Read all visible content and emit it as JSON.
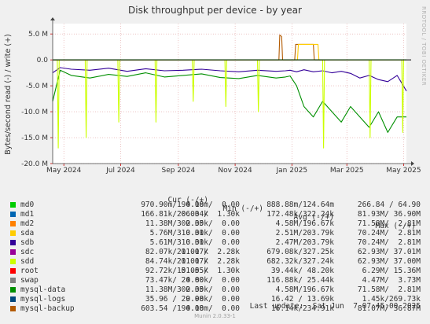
{
  "title": "Disk throughput per device - by year",
  "watermark": "RRDTOOL / TOBI OETIKER",
  "footer": "Munin 2.0.33-1",
  "last_update": "Last update:  Sat Jun  7 07:45:00 2025",
  "legend_headers": {
    "cur": "Cur (-/+)",
    "min": "Min (-/+)",
    "avg": "Avg (-/+)",
    "max": "Max (-/+)"
  },
  "legend": [
    {
      "name": "md0",
      "color": "#00cc00",
      "cur": "970.90m/194.18m",
      "min": "0.00 /  0.00",
      "avg": "888.88m/124.64m",
      "max": "266.84 / 64.90"
    },
    {
      "name": "md1",
      "color": "#0066b3",
      "cur": "166.81k/206.34k",
      "min": "0.00 /  1.30k",
      "avg": "172.48k/322.24k",
      "max": "81.93M/ 36.90M"
    },
    {
      "name": "md2",
      "color": "#ff8000",
      "cur": " 11.38M/302.35k",
      "min": "0.00 /  0.00",
      "avg": "  4.58M/196.67k",
      "max": "71.58M/  2.81M"
    },
    {
      "name": "sda",
      "color": "#ffcc00",
      "cur": "  5.76M/310.31k",
      "min": "0.00 /  0.00",
      "avg": "  2.51M/203.79k",
      "max": "70.24M/  2.81M"
    },
    {
      "name": "sdb",
      "color": "#330099",
      "cur": "  5.61M/310.31k",
      "min": "0.00 /  0.00",
      "avg": "  2.47M/203.79k",
      "max": "70.24M/  2.81M"
    },
    {
      "name": "sdc",
      "color": "#990099",
      "cur": " 82.07k/211.17k",
      "min": "0.00 /  2.28k",
      "avg": "679.08k/327.25k",
      "max": "62.93M/ 37.01M"
    },
    {
      "name": "sdd",
      "color": "#ccff00",
      "cur": " 84.74k/211.17k",
      "min": "0.00 /  2.28k",
      "avg": "682.32k/327.24k",
      "max": "62.93M/ 37.00M"
    },
    {
      "name": "root",
      "color": "#ff0000",
      "cur": " 92.72k/151.55k",
      "min": "0.00 /  1.30k",
      "avg": " 39.44k/ 48.20k",
      "max": " 6.29M/ 15.36M"
    },
    {
      "name": "swap",
      "color": "#808080",
      "cur": " 73.47k/ 24.80k",
      "min": "0.00 /  0.00",
      "avg": "116.88k/ 25.44k",
      "max": " 4.47M/  3.73M"
    },
    {
      "name": "mysql-data",
      "color": "#008f00",
      "cur": " 11.38M/302.35k",
      "min": "0.00 /  0.00",
      "avg": "  4.58M/196.67k",
      "max": "71.58M/  2.81M"
    },
    {
      "name": "mysql-logs",
      "color": "#00487d",
      "cur": " 35.96 / 29.98k",
      "min": "0.00 /  0.00",
      "avg": " 16.42 / 13.69k",
      "max": " 1.45k/269.73k"
    },
    {
      "name": "mysql-backup",
      "color": "#b35a00",
      "cur": "603.54 /194.18m",
      "min": "0.00 /  0.00",
      "avg": " 16.14k/234.91k",
      "max": "81.07M/ 36.87M"
    }
  ],
  "chart_data": {
    "type": "line",
    "title": "Disk throughput per device - by year",
    "ylabel": "Bytes/second read (-) / write (+)",
    "ylim": [
      -20000000,
      7000000
    ],
    "yticks": [
      {
        "value": 5000000,
        "label": "5.0 M"
      },
      {
        "value": 0,
        "label": "0.0"
      },
      {
        "value": -5000000,
        "label": "-5.0 M"
      },
      {
        "value": -10000000,
        "label": "-10.0 M"
      },
      {
        "value": -15000000,
        "label": "-15.0 M"
      },
      {
        "value": -20000000,
        "label": "-20.0 M"
      }
    ],
    "xlim": [
      0,
      380
    ],
    "xticks": [
      {
        "value": 12,
        "label": "May 2024"
      },
      {
        "value": 73,
        "label": "Jul 2024"
      },
      {
        "value": 135,
        "label": "Sep 2024"
      },
      {
        "value": 196,
        "label": "Nov 2024"
      },
      {
        "value": 257,
        "label": "Jan 2025"
      },
      {
        "value": 316,
        "label": "Mar 2025"
      },
      {
        "value": 377,
        "label": "May 2025"
      }
    ],
    "series": [
      {
        "name": "sdb",
        "color": "#330099",
        "x": [
          0,
          8,
          20,
          40,
          60,
          80,
          100,
          120,
          140,
          160,
          180,
          200,
          220,
          240,
          250,
          255,
          262,
          270,
          280,
          290,
          300,
          310,
          320,
          330,
          340,
          350,
          360,
          370,
          380
        ],
        "y": [
          -2500000,
          -1500000,
          -1800000,
          -2000000,
          -1600000,
          -2200000,
          -1700000,
          -2100000,
          -2000000,
          -1800000,
          -2100000,
          -2300000,
          -2000000,
          -2200000,
          -2100000,
          -2000000,
          -2300000,
          -1900000,
          -2300000,
          -2100000,
          -2500000,
          -2200000,
          -2600000,
          -3500000,
          -3000000,
          -3800000,
          -4200000,
          -3000000,
          -6000000
        ]
      },
      {
        "name": "mysql-data",
        "color": "#008f00",
        "x": [
          0,
          8,
          20,
          40,
          60,
          80,
          100,
          120,
          140,
          160,
          180,
          200,
          220,
          240,
          250,
          255,
          262,
          270,
          280,
          290,
          300,
          310,
          320,
          330,
          340,
          350,
          360,
          370,
          380
        ],
        "y": [
          -8000000,
          -2000000,
          -3000000,
          -3500000,
          -2800000,
          -3200000,
          -2500000,
          -3300000,
          -3000000,
          -2700000,
          -3400000,
          -3600000,
          -3000000,
          -3500000,
          -3300000,
          -3100000,
          -5000000,
          -9000000,
          -11000000,
          -8000000,
          -10000000,
          -12000000,
          -9000000,
          -11000000,
          -13000000,
          -10000000,
          -14000000,
          -11000000,
          -11000000
        ]
      },
      {
        "name": "mysql-backup",
        "color": "#b35a00",
        "x": [
          0,
          243,
          244,
          246,
          247,
          260,
          261,
          280,
          281,
          290
        ],
        "y": [
          0,
          0,
          4800000,
          4500000,
          0,
          0,
          3000000,
          3000000,
          0,
          0
        ]
      },
      {
        "name": "sda",
        "color": "#ffcc00",
        "x": [
          0,
          263,
          264,
          285,
          286,
          380
        ],
        "y": [
          0,
          0,
          3000000,
          3000000,
          0,
          0
        ]
      },
      {
        "name": "sdd",
        "color": "#ccff00",
        "x": [
          0,
          5,
          6,
          7,
          35,
          36,
          37,
          70,
          71,
          72,
          110,
          111,
          112,
          150,
          151,
          152,
          185,
          186,
          187,
          220,
          221,
          222,
          290,
          291,
          292,
          340,
          341,
          342,
          375,
          376,
          377
        ],
        "y": [
          0,
          0,
          -17000000,
          0,
          0,
          -15000000,
          0,
          0,
          -12000000,
          0,
          0,
          -12000000,
          0,
          0,
          -8000000,
          0,
          0,
          -9000000,
          0,
          0,
          -10000000,
          0,
          0,
          -17000000,
          0,
          0,
          -15000000,
          0,
          0,
          -14000000,
          0
        ]
      },
      {
        "name": "md0",
        "color": "#00cc00",
        "x": [
          0,
          380
        ],
        "y": [
          0,
          0
        ]
      }
    ]
  }
}
